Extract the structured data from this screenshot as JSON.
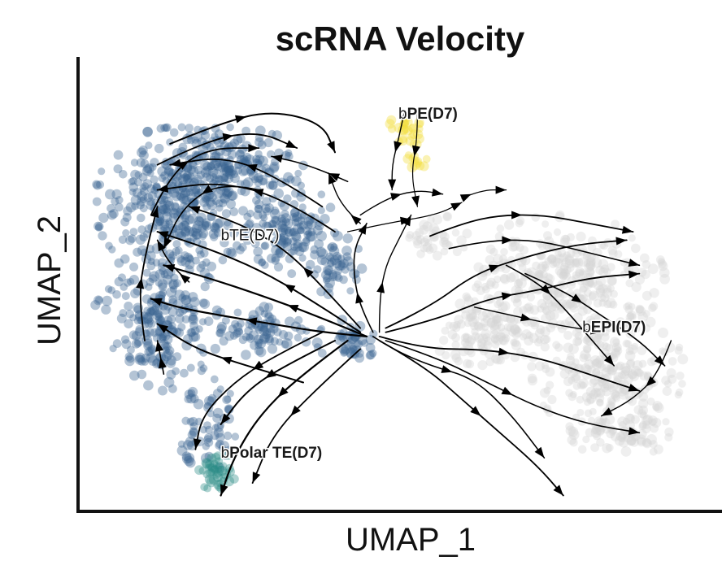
{
  "chart_data": {
    "type": "scatter",
    "subtype": "velocity-streamline-embedding",
    "title": "scRNA Velocity",
    "xlabel": "UMAP_1",
    "ylabel": "UMAP_2",
    "ticks_shown": false,
    "grid": false,
    "legend": "none",
    "xlim": [
      0,
      100
    ],
    "ylim": [
      0,
      100
    ],
    "clusters": [
      {
        "id": "bTE",
        "label_prefix": "b",
        "label_main": "TE(D7)",
        "label_bold": false,
        "color": "#3b6591",
        "label_pos": [
          22,
          64
        ],
        "blobs": [
          {
            "cx": 15,
            "cy": 73,
            "rx": 13,
            "ry": 18,
            "n": 380
          },
          {
            "cx": 12,
            "cy": 45,
            "rx": 10,
            "ry": 17,
            "n": 240
          },
          {
            "cx": 24,
            "cy": 82,
            "rx": 11,
            "ry": 9,
            "n": 150
          },
          {
            "cx": 33,
            "cy": 67,
            "rx": 7,
            "ry": 11,
            "n": 140
          },
          {
            "cx": 40,
            "cy": 58,
            "rx": 5,
            "ry": 7,
            "n": 50
          },
          {
            "cx": 29,
            "cy": 42,
            "rx": 7,
            "ry": 6,
            "n": 80
          },
          {
            "cx": 42,
            "cy": 40,
            "rx": 5,
            "ry": 5,
            "n": 35
          },
          {
            "cx": 20,
            "cy": 20,
            "rx": 5,
            "ry": 11,
            "n": 70
          },
          {
            "cx": 44,
            "cy": 38,
            "rx": 3,
            "ry": 3,
            "n": 15
          }
        ]
      },
      {
        "id": "bPolarTE",
        "label_prefix": "b",
        "label_main": "Polar TE(D7)",
        "label_bold": true,
        "color": "#2a8c86",
        "label_pos": [
          22,
          12
        ],
        "blobs": [
          {
            "cx": 21,
            "cy": 9,
            "rx": 3.5,
            "ry": 4.5,
            "n": 45
          }
        ]
      },
      {
        "id": "bPE",
        "label_prefix": "b",
        "label_main": "PE(D7)",
        "label_bold": true,
        "color": "#f2dc3a",
        "label_pos": [
          50,
          93
        ],
        "blobs": [
          {
            "cx": 51,
            "cy": 90,
            "rx": 2.5,
            "ry": 5,
            "n": 30
          },
          {
            "cx": 53,
            "cy": 83,
            "rx": 1.6,
            "ry": 3,
            "n": 12
          }
        ]
      },
      {
        "id": "bEPI",
        "label_prefix": "b",
        "label_main": "EPI(D7)",
        "label_bold": true,
        "color": "#d4d4d4",
        "label_pos": [
          79,
          42
        ],
        "blobs": [
          {
            "cx": 76,
            "cy": 55,
            "rx": 16,
            "ry": 15,
            "n": 340
          },
          {
            "cx": 83,
            "cy": 33,
            "rx": 12,
            "ry": 16,
            "n": 260
          },
          {
            "cx": 64,
            "cy": 42,
            "rx": 9,
            "ry": 8,
            "n": 120
          },
          {
            "cx": 56,
            "cy": 64,
            "rx": 5,
            "ry": 6,
            "n": 40
          },
          {
            "cx": 85,
            "cy": 18,
            "rx": 8,
            "ry": 6,
            "n": 80
          }
        ]
      }
    ],
    "streamlines": [
      {
        "points": [
          [
            45,
            41
          ],
          [
            38,
            42
          ],
          [
            30,
            44
          ],
          [
            22,
            46
          ],
          [
            15,
            48
          ],
          [
            11,
            50
          ]
        ],
        "width": 2.2
      },
      {
        "points": [
          [
            45,
            41
          ],
          [
            37,
            46
          ],
          [
            28,
            51
          ],
          [
            20,
            55
          ],
          [
            13,
            58
          ]
        ],
        "width": 2.2
      },
      {
        "points": [
          [
            44,
            42
          ],
          [
            36,
            50
          ],
          [
            28,
            57
          ],
          [
            20,
            62
          ],
          [
            12,
            66
          ]
        ],
        "width": 2.0
      },
      {
        "points": [
          [
            44,
            43
          ],
          [
            38,
            53
          ],
          [
            32,
            62
          ],
          [
            25,
            68
          ],
          [
            17,
            72
          ]
        ],
        "width": 1.8
      },
      {
        "points": [
          [
            35,
            30
          ],
          [
            26,
            34
          ],
          [
            18,
            38
          ],
          [
            12,
            44
          ]
        ],
        "width": 2.0
      },
      {
        "points": [
          [
            14,
            87
          ],
          [
            22,
            92
          ],
          [
            30,
            95
          ],
          [
            38,
            92
          ],
          [
            40,
            85
          ]
        ],
        "width": 2.0
      },
      {
        "points": [
          [
            12,
            82
          ],
          [
            20,
            88
          ],
          [
            28,
            90
          ],
          [
            34,
            86
          ]
        ],
        "width": 1.8
      },
      {
        "points": [
          [
            11,
            70
          ],
          [
            14,
            80
          ],
          [
            20,
            86
          ],
          [
            28,
            86
          ]
        ],
        "width": 1.8
      },
      {
        "points": [
          [
            38,
            72
          ],
          [
            30,
            80
          ],
          [
            22,
            84
          ],
          [
            14,
            82
          ]
        ],
        "width": 1.8
      },
      {
        "points": [
          [
            40,
            66
          ],
          [
            32,
            74
          ],
          [
            22,
            78
          ],
          [
            12,
            76
          ]
        ],
        "width": 1.8
      },
      {
        "points": [
          [
            28,
            76
          ],
          [
            22,
            78
          ],
          [
            16,
            72
          ],
          [
            13,
            62
          ]
        ],
        "width": 1.6
      },
      {
        "points": [
          [
            42,
            78
          ],
          [
            36,
            82
          ],
          [
            30,
            84
          ]
        ],
        "width": 1.6
      },
      {
        "points": [
          [
            44,
            68
          ],
          [
            41,
            72
          ],
          [
            39,
            80
          ]
        ],
        "width": 1.4
      },
      {
        "points": [
          [
            17,
            54
          ],
          [
            14,
            58
          ],
          [
            12,
            64
          ]
        ],
        "width": 1.6
      },
      {
        "points": [
          [
            10,
            40
          ],
          [
            9,
            50
          ],
          [
            10,
            60
          ],
          [
            12,
            72
          ]
        ],
        "width": 1.8
      },
      {
        "points": [
          [
            13,
            32
          ],
          [
            12,
            40
          ]
        ],
        "width": 1.6
      },
      {
        "points": [
          [
            40,
            40
          ],
          [
            32,
            34
          ],
          [
            26,
            28
          ],
          [
            22,
            20
          ]
        ],
        "width": 2.0
      },
      {
        "points": [
          [
            42,
            40
          ],
          [
            34,
            31
          ],
          [
            28,
            22
          ],
          [
            24,
            12
          ],
          [
            22,
            3
          ]
        ],
        "width": 2.2
      },
      {
        "points": [
          [
            44,
            38
          ],
          [
            36,
            27
          ],
          [
            30,
            17
          ],
          [
            27,
            6
          ]
        ],
        "width": 1.8
      },
      {
        "points": [
          [
            38,
            42
          ],
          [
            30,
            36
          ],
          [
            24,
            30
          ],
          [
            19,
            22
          ],
          [
            18,
            14
          ]
        ],
        "width": 1.8
      },
      {
        "points": [
          [
            46,
            42
          ],
          [
            44,
            48
          ],
          [
            43,
            55
          ],
          [
            43,
            62
          ],
          [
            45,
            68
          ]
        ],
        "width": 1.6
      },
      {
        "points": [
          [
            47,
            42
          ],
          [
            47,
            50
          ],
          [
            48,
            58
          ],
          [
            50,
            64
          ],
          [
            52,
            70
          ]
        ],
        "width": 1.4
      },
      {
        "points": [
          [
            46,
            41
          ],
          [
            49,
            38
          ],
          [
            55,
            34
          ],
          [
            62,
            31
          ],
          [
            68,
            22
          ],
          [
            73,
            12
          ]
        ],
        "width": 1.6
      },
      {
        "points": [
          [
            47,
            41
          ],
          [
            54,
            38
          ],
          [
            63,
            38
          ],
          [
            72,
            36
          ],
          [
            80,
            32
          ],
          [
            88,
            28
          ]
        ],
        "width": 1.8
      },
      {
        "points": [
          [
            48,
            42
          ],
          [
            56,
            45
          ],
          [
            64,
            50
          ],
          [
            72,
            52
          ],
          [
            80,
            55
          ],
          [
            88,
            56
          ]
        ],
        "width": 1.8
      },
      {
        "points": [
          [
            48,
            43
          ],
          [
            55,
            48
          ],
          [
            62,
            56
          ],
          [
            70,
            60
          ],
          [
            78,
            63
          ],
          [
            86,
            64
          ]
        ],
        "width": 1.8
      },
      {
        "points": [
          [
            47,
            40
          ],
          [
            54,
            34
          ],
          [
            60,
            26
          ],
          [
            66,
            18
          ],
          [
            72,
            10
          ],
          [
            76,
            3
          ]
        ],
        "width": 1.8
      },
      {
        "points": [
          [
            48,
            40
          ],
          [
            56,
            36
          ],
          [
            64,
            30
          ],
          [
            72,
            24
          ],
          [
            80,
            20
          ],
          [
            88,
            18
          ]
        ],
        "width": 1.6
      },
      {
        "points": [
          [
            55,
            65
          ],
          [
            60,
            68
          ],
          [
            66,
            70
          ],
          [
            73,
            70
          ],
          [
            80,
            68
          ],
          [
            87,
            66
          ]
        ],
        "width": 1.8
      },
      {
        "points": [
          [
            58,
            62
          ],
          [
            64,
            64
          ],
          [
            72,
            64
          ],
          [
            80,
            61
          ],
          [
            88,
            58
          ]
        ],
        "width": 1.6
      },
      {
        "points": [
          [
            67,
            58
          ],
          [
            72,
            54
          ],
          [
            76,
            48
          ],
          [
            80,
            41
          ],
          [
            84,
            34
          ]
        ],
        "width": 1.6
      },
      {
        "points": [
          [
            70,
            56
          ],
          [
            76,
            52
          ],
          [
            82,
            46
          ],
          [
            88,
            40
          ],
          [
            92,
            34
          ]
        ],
        "width": 1.6
      },
      {
        "points": [
          [
            93,
            40
          ],
          [
            91,
            32
          ],
          [
            87,
            26
          ],
          [
            82,
            22
          ]
        ],
        "width": 1.4
      },
      {
        "points": [
          [
            62,
            48
          ],
          [
            68,
            46
          ],
          [
            74,
            44
          ],
          [
            82,
            42
          ]
        ],
        "width": 1.4
      },
      {
        "points": [
          [
            44,
            70
          ],
          [
            48,
            74
          ],
          [
            53,
            76
          ],
          [
            57,
            75
          ]
        ],
        "width": 1.4
      },
      {
        "points": [
          [
            42,
            66
          ],
          [
            48,
            68
          ],
          [
            56,
            70
          ],
          [
            60,
            73
          ]
        ],
        "width": 1.2
      },
      {
        "points": [
          [
            51,
            95
          ],
          [
            50,
            88
          ],
          [
            49,
            82
          ],
          [
            49,
            76
          ]
        ],
        "width": 1.4
      },
      {
        "points": [
          [
            53,
            95
          ],
          [
            53,
            88
          ],
          [
            52,
            80
          ],
          [
            53,
            72
          ]
        ],
        "width": 1.2
      },
      {
        "points": [
          [
            60,
            74
          ],
          [
            63,
            76
          ],
          [
            67,
            76
          ]
        ],
        "width": 1.2
      }
    ],
    "axes": {
      "spines": [
        "left",
        "bottom"
      ]
    }
  }
}
